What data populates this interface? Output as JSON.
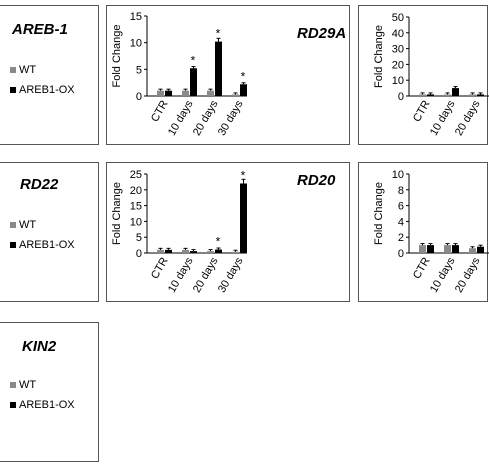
{
  "legend": {
    "wt": "WT",
    "ox": "AREB1-OX"
  },
  "colors": {
    "wt": "#8a8a8a",
    "ox": "#000000",
    "border": "#555555"
  },
  "legend_panels": [
    {
      "gene": "AREB-1"
    },
    {
      "gene": "RD22"
    },
    {
      "gene": "KIN2"
    }
  ],
  "chart_data": [
    {
      "type": "bar",
      "gene_label": "RD29A",
      "ylabel": "Fold Change",
      "ylim": [
        0,
        15
      ],
      "yticks": [
        "0",
        "5",
        "10",
        "15"
      ],
      "categories": [
        "CTR",
        "10 days",
        "20 days",
        "30 days"
      ],
      "series": [
        {
          "name": "WT",
          "values": [
            1.0,
            1.0,
            1.0,
            0.3
          ]
        },
        {
          "name": "AREB1-OX",
          "values": [
            1.0,
            5.2,
            10.2,
            2.2
          ]
        }
      ],
      "significance": [
        "",
        "*",
        "*",
        "*"
      ]
    },
    {
      "type": "bar",
      "gene_label": "RD20",
      "ylabel": "Fold Change",
      "ylim": [
        0,
        25
      ],
      "yticks": [
        "0",
        "5",
        "10",
        "15",
        "20",
        "25"
      ],
      "categories": [
        "CTR",
        "10 days",
        "20 days",
        "30 days"
      ],
      "series": [
        {
          "name": "WT",
          "values": [
            1.0,
            1.0,
            0.6,
            0.4
          ]
        },
        {
          "name": "AREB1-OX",
          "values": [
            1.0,
            0.6,
            1.1,
            22.0
          ]
        }
      ],
      "significance": [
        "",
        "",
        "*",
        "*"
      ]
    },
    {
      "type": "bar",
      "gene_label": "",
      "ylabel": "Fold Change",
      "ylim": [
        0,
        50
      ],
      "yticks": [
        "0",
        "10",
        "20",
        "30",
        "40",
        "50"
      ],
      "categories": [
        "CTR",
        "10 days",
        "20 days"
      ],
      "series": [
        {
          "name": "WT",
          "values": [
            1.0,
            1.0,
            1.0
          ]
        },
        {
          "name": "AREB1-OX",
          "values": [
            1.0,
            5.0,
            1.0
          ]
        }
      ],
      "significance": [
        "",
        "",
        ""
      ]
    },
    {
      "type": "bar",
      "gene_label": "",
      "ylabel": "Fold Change",
      "ylim": [
        0,
        10
      ],
      "yticks": [
        "0",
        "2",
        "4",
        "6",
        "8",
        "10"
      ],
      "categories": [
        "CTR",
        "10 days",
        "20 days"
      ],
      "series": [
        {
          "name": "WT",
          "values": [
            1.0,
            1.0,
            0.6
          ]
        },
        {
          "name": "AREB1-OX",
          "values": [
            1.0,
            1.0,
            0.8
          ]
        }
      ],
      "significance": [
        "",
        "",
        ""
      ]
    }
  ]
}
